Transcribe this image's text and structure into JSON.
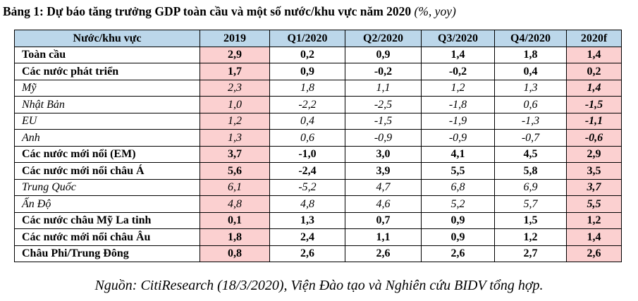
{
  "title": {
    "main": "Bảng 1: Dự báo tăng trưởng GDP toàn cầu và một số nước/khu vực năm 2020",
    "unit": "(%, yoy)"
  },
  "table": {
    "headers": [
      "Nước/khu vực",
      "2019",
      "Q1/2020",
      "Q2/2020",
      "Q3/2020",
      "Q4/2020",
      "2020f"
    ],
    "rows": [
      {
        "style": "bold",
        "name": "Toàn cầu",
        "values": [
          "2,9",
          "0,2",
          "0,9",
          "1,4",
          "1,8",
          "1,4"
        ]
      },
      {
        "style": "bold",
        "name": "Các nước phát triển",
        "values": [
          "1,7",
          "0,9",
          "-0,2",
          "-0,2",
          "0,4",
          "0,2"
        ]
      },
      {
        "style": "italic",
        "name": "Mỹ",
        "values": [
          "2,3",
          "1,8",
          "1,1",
          "1,2",
          "1,3",
          "1,4"
        ]
      },
      {
        "style": "italic",
        "name": "Nhật Bản",
        "values": [
          "1,0",
          "-2,2",
          "-2,5",
          "-1,8",
          "0,6",
          "-1,5"
        ]
      },
      {
        "style": "italic",
        "name": "EU",
        "values": [
          "1,2",
          "0,4",
          "-1,5",
          "-1,9",
          "-1,3",
          "-1,1"
        ]
      },
      {
        "style": "italic",
        "name": "Anh",
        "values": [
          "1,3",
          "0,6",
          "-0,9",
          "-0,9",
          "-0,7",
          "-0,6"
        ]
      },
      {
        "style": "bold",
        "name": "Các nước mới nổi (EM)",
        "values": [
          "3,7",
          "-1,0",
          "3,0",
          "4,1",
          "4,5",
          "2,9"
        ]
      },
      {
        "style": "bold",
        "name": "Các nước mới nổi châu Á",
        "values": [
          "5,6",
          "-2,4",
          "3,9",
          "5,5",
          "5,8",
          "3,5"
        ]
      },
      {
        "style": "italic",
        "name": "Trung Quốc",
        "values": [
          "6,1",
          "-5,2",
          "4,7",
          "6,8",
          "6,9",
          "3,7"
        ]
      },
      {
        "style": "italic",
        "name": "Ấn Độ",
        "values": [
          "4,8",
          "4,8",
          "4,6",
          "5,2",
          "5,7",
          "5,5"
        ]
      },
      {
        "style": "bold",
        "name": "Các nước châu Mỹ La tinh",
        "values": [
          "0,1",
          "1,3",
          "0,7",
          "0,9",
          "1,5",
          "1,2"
        ]
      },
      {
        "style": "bold",
        "name": "Các nước mới nổi châu Âu",
        "values": [
          "1,8",
          "2,4",
          "1,1",
          "0,9",
          "1,2",
          "1,4"
        ]
      },
      {
        "style": "bold",
        "name": "Châu Phi/Trung Đông",
        "values": [
          "0,8",
          "2,6",
          "2,6",
          "2,6",
          "2,7",
          "2,6"
        ]
      }
    ]
  },
  "colors": {
    "header_bg": "#bcd7ea",
    "highlight_bg": "#fbd0d0"
  },
  "source": "Nguồn: CitiResearch (18/3/2020), Viện Đào tạo và Nghiên cứu BIDV tổng hợp."
}
